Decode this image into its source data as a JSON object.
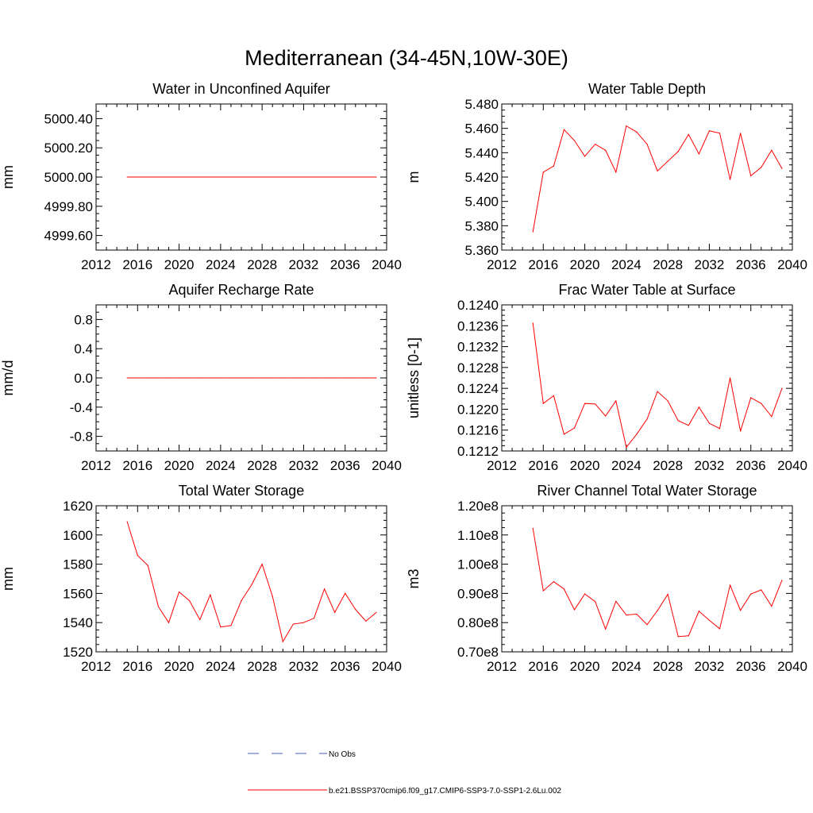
{
  "main_title": "Mediterranean (34-45N,10W-30E)",
  "colors": {
    "model_line": "#ff0000",
    "obs_line": "#4a5fc1",
    "axis": "#000000"
  },
  "legend": {
    "obs_label": "No Obs",
    "model_label": "b.e21.BSSP370cmip6.f09_g17.CMIP6-SSP3-7.0-SSP1-2.6Lu.002"
  },
  "chart_data": [
    {
      "type": "line",
      "title": "Water in Unconfined Aquifer",
      "ylabel": "mm",
      "xlim": [
        2012,
        2040
      ],
      "xticks": [
        2012,
        2016,
        2020,
        2024,
        2028,
        2032,
        2036,
        2040
      ],
      "xtick_labels": [
        "2012",
        "2016",
        "2020",
        "2024",
        "2028",
        "2032",
        "2036",
        "2040"
      ],
      "ylim": [
        4999.5,
        5000.5
      ],
      "yticks": [
        4999.6,
        4999.8,
        5000.0,
        5000.2,
        5000.4
      ],
      "ytick_labels": [
        "4999.60",
        "4999.80",
        "5000.00",
        "5000.20",
        "5000.40"
      ],
      "x": [
        2015,
        2016,
        2017,
        2018,
        2019,
        2020,
        2021,
        2022,
        2023,
        2024,
        2025,
        2026,
        2027,
        2028,
        2029,
        2030,
        2031,
        2032,
        2033,
        2034,
        2035,
        2036,
        2037,
        2038,
        2039
      ],
      "values": [
        5000,
        5000,
        5000,
        5000,
        5000,
        5000,
        5000,
        5000,
        5000,
        5000,
        5000,
        5000,
        5000,
        5000,
        5000,
        5000,
        5000,
        5000,
        5000,
        5000,
        5000,
        5000,
        5000,
        5000,
        5000
      ]
    },
    {
      "type": "line",
      "title": "Water Table Depth",
      "ylabel": "m",
      "xlim": [
        2012,
        2040
      ],
      "xticks": [
        2012,
        2016,
        2020,
        2024,
        2028,
        2032,
        2036,
        2040
      ],
      "xtick_labels": [
        "2012",
        "2016",
        "2020",
        "2024",
        "2028",
        "2032",
        "2036",
        "2040"
      ],
      "ylim": [
        5.36,
        5.48
      ],
      "yticks": [
        5.36,
        5.38,
        5.4,
        5.42,
        5.44,
        5.46,
        5.48
      ],
      "ytick_labels": [
        "5.360",
        "5.380",
        "5.400",
        "5.420",
        "5.440",
        "5.460",
        "5.480"
      ],
      "x": [
        2015,
        2016,
        2017,
        2018,
        2019,
        2020,
        2021,
        2022,
        2023,
        2024,
        2025,
        2026,
        2027,
        2028,
        2029,
        2030,
        2031,
        2032,
        2033,
        2034,
        2035,
        2036,
        2037,
        2038,
        2039
      ],
      "values": [
        5.375,
        5.424,
        5.429,
        5.459,
        5.45,
        5.437,
        5.447,
        5.442,
        5.424,
        5.462,
        5.457,
        5.447,
        5.425,
        5.433,
        5.441,
        5.455,
        5.439,
        5.458,
        5.456,
        5.418,
        5.456,
        5.421,
        5.428,
        5.442,
        5.427
      ]
    },
    {
      "type": "line",
      "title": "Aquifer Recharge Rate",
      "ylabel": "mm/d",
      "xlim": [
        2012,
        2040
      ],
      "xticks": [
        2012,
        2016,
        2020,
        2024,
        2028,
        2032,
        2036,
        2040
      ],
      "xtick_labels": [
        "2012",
        "2016",
        "2020",
        "2024",
        "2028",
        "2032",
        "2036",
        "2040"
      ],
      "ylim": [
        -1.0,
        1.0
      ],
      "yticks": [
        -0.8,
        -0.4,
        0.0,
        0.4,
        0.8
      ],
      "ytick_labels": [
        "-0.8",
        "-0.4",
        "0.0",
        "0.4",
        "0.8"
      ],
      "x": [
        2015,
        2016,
        2017,
        2018,
        2019,
        2020,
        2021,
        2022,
        2023,
        2024,
        2025,
        2026,
        2027,
        2028,
        2029,
        2030,
        2031,
        2032,
        2033,
        2034,
        2035,
        2036,
        2037,
        2038,
        2039
      ],
      "values": [
        0,
        0,
        0,
        0,
        0,
        0,
        0,
        0,
        0,
        0,
        0,
        0,
        0,
        0,
        0,
        0,
        0,
        0,
        0,
        0,
        0,
        0,
        0,
        0,
        0
      ]
    },
    {
      "type": "line",
      "title": "Frac Water Table at Surface",
      "ylabel": "unitless [0-1]",
      "xlim": [
        2012,
        2040
      ],
      "xticks": [
        2012,
        2016,
        2020,
        2024,
        2028,
        2032,
        2036,
        2040
      ],
      "xtick_labels": [
        "2012",
        "2016",
        "2020",
        "2024",
        "2028",
        "2032",
        "2036",
        "2040"
      ],
      "ylim": [
        0.1212,
        0.124
      ],
      "yticks": [
        0.1212,
        0.1216,
        0.122,
        0.1224,
        0.1228,
        0.1232,
        0.1236,
        0.124
      ],
      "ytick_labels": [
        "0.1212",
        "0.1216",
        "0.1220",
        "0.1224",
        "0.1228",
        "0.1232",
        "0.1236",
        "0.1240"
      ],
      "x": [
        2015,
        2016,
        2017,
        2018,
        2019,
        2020,
        2021,
        2022,
        2023,
        2024,
        2025,
        2026,
        2027,
        2028,
        2029,
        2030,
        2031,
        2032,
        2033,
        2034,
        2035,
        2036,
        2037,
        2038,
        2039
      ],
      "values": [
        0.12365,
        0.12211,
        0.12226,
        0.12152,
        0.12164,
        0.12211,
        0.1221,
        0.12187,
        0.12216,
        0.12127,
        0.12152,
        0.12181,
        0.12234,
        0.12216,
        0.12178,
        0.12169,
        0.12204,
        0.12173,
        0.12163,
        0.1226,
        0.12158,
        0.12222,
        0.12211,
        0.12186,
        0.1224
      ]
    },
    {
      "type": "line",
      "title": "Total Water Storage",
      "ylabel": "mm",
      "xlim": [
        2012,
        2040
      ],
      "xticks": [
        2012,
        2016,
        2020,
        2024,
        2028,
        2032,
        2036,
        2040
      ],
      "xtick_labels": [
        "2012",
        "2016",
        "2020",
        "2024",
        "2028",
        "2032",
        "2036",
        "2040"
      ],
      "ylim": [
        1520,
        1620
      ],
      "yticks": [
        1520,
        1540,
        1560,
        1580,
        1600,
        1620
      ],
      "ytick_labels": [
        "1520",
        "1540",
        "1560",
        "1580",
        "1600",
        "1620"
      ],
      "x": [
        2015,
        2016,
        2017,
        2018,
        2019,
        2020,
        2021,
        2022,
        2023,
        2024,
        2025,
        2026,
        2027,
        2028,
        2029,
        2030,
        2031,
        2032,
        2033,
        2034,
        2035,
        2036,
        2037,
        2038,
        2039
      ],
      "values": [
        1609,
        1586,
        1579,
        1551,
        1540,
        1561,
        1555,
        1542,
        1559,
        1537,
        1538,
        1555,
        1566,
        1580,
        1558,
        1527,
        1539,
        1540,
        1543,
        1563,
        1547,
        1560,
        1549,
        1541,
        1547
      ]
    },
    {
      "type": "line",
      "title": "River Channel Total Water Storage",
      "ylabel": "m3",
      "xlim": [
        2012,
        2040
      ],
      "xticks": [
        2012,
        2016,
        2020,
        2024,
        2028,
        2032,
        2036,
        2040
      ],
      "xtick_labels": [
        "2012",
        "2016",
        "2020",
        "2024",
        "2028",
        "2032",
        "2036",
        "2040"
      ],
      "ylim": [
        70000000,
        120000000
      ],
      "yticks": [
        70000000,
        80000000,
        90000000,
        100000000,
        110000000,
        120000000
      ],
      "ytick_labels": [
        "0.70e8",
        "0.80e8",
        "0.90e8",
        "1.00e8",
        "1.10e8",
        "1.20e8"
      ],
      "x": [
        2015,
        2016,
        2017,
        2018,
        2019,
        2020,
        2021,
        2022,
        2023,
        2024,
        2025,
        2026,
        2027,
        2028,
        2029,
        2030,
        2031,
        2032,
        2033,
        2034,
        2035,
        2036,
        2037,
        2038,
        2039
      ],
      "values": [
        112300000,
        90900000,
        94000000,
        91500000,
        84400000,
        89800000,
        87200000,
        77800000,
        87300000,
        82600000,
        82900000,
        79300000,
        84100000,
        89700000,
        75200000,
        75500000,
        83900000,
        80800000,
        77900000,
        92800000,
        84200000,
        89800000,
        91200000,
        85600000,
        94500000
      ]
    }
  ]
}
